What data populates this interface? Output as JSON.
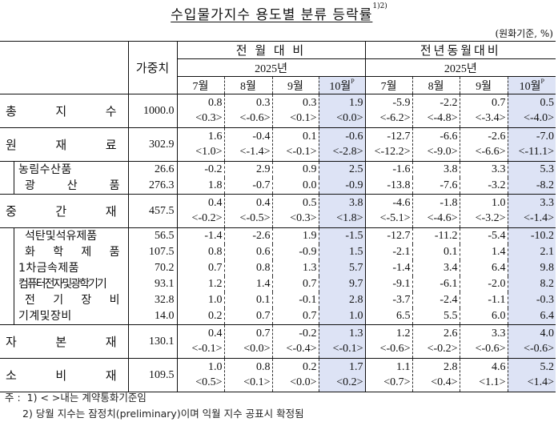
{
  "title": "수입물가지수 용도별 분류 등락률",
  "title_sup": "1)2)",
  "unit": "(원화기준, %)",
  "header": {
    "weight_label": "가중치",
    "group_mom": "전 월 대 비",
    "group_yoy": "전년동월대비",
    "year_mom": "2025년",
    "year_yoy": "2025년",
    "months": [
      "7월",
      "8월",
      "9월",
      "10월"
    ],
    "prelim_mark": "P"
  },
  "highlight_color": "#dde3f5",
  "rows": [
    {
      "label": "총 지 수",
      "weight": "1000.0",
      "type": "main",
      "mom": [
        "0.8",
        "0.3",
        "0.3",
        "1.9"
      ],
      "mom_contract": [
        "<0.3>",
        "<-0.6>",
        "<0.1>",
        "<0.0>"
      ],
      "yoy": [
        "-5.9",
        "-2.2",
        "0.7",
        "0.5"
      ],
      "yoy_contract": [
        "<-6.2>",
        "<-4.8>",
        "<-3.4>",
        "<-4.0>"
      ]
    },
    {
      "label": "원 재 료",
      "weight": "302.9",
      "type": "main",
      "mom": [
        "1.6",
        "-0.4",
        "0.1",
        "-0.6"
      ],
      "mom_contract": [
        "<1.0>",
        "<-1.4>",
        "<-0.1>",
        "<-2.8>"
      ],
      "yoy": [
        "-12.7",
        "-6.6",
        "-2.6",
        "-7.0"
      ],
      "yoy_contract": [
        "<-12.2>",
        "<-9.0>",
        "<-6.6>",
        "<-11.1>"
      ]
    },
    {
      "label": "농 림 수 산 품",
      "weight": "26.6",
      "type": "sub",
      "mom": [
        "-0.2",
        "2.9",
        "0.9",
        "2.5"
      ],
      "yoy": [
        "-1.6",
        "3.8",
        "3.3",
        "5.3"
      ]
    },
    {
      "label": "광 산 품",
      "weight": "276.3",
      "type": "sub",
      "mom": [
        "1.8",
        "-0.7",
        "0.0",
        "-0.9"
      ],
      "yoy": [
        "-13.8",
        "-7.6",
        "-3.2",
        "-8.2"
      ]
    },
    {
      "label": "중 간 재",
      "weight": "457.5",
      "type": "main",
      "mom": [
        "0.4",
        "0.4",
        "0.5",
        "3.8"
      ],
      "mom_contract": [
        "<-0.2>",
        "<-0.5>",
        "<0.3>",
        "<1.8>"
      ],
      "yoy": [
        "-4.6",
        "-1.8",
        "1.0",
        "3.3"
      ],
      "yoy_contract": [
        "<-5.1>",
        "<-4.6>",
        "<-3.2>",
        "<-1.4>"
      ]
    },
    {
      "label": "석탄및석유제품",
      "weight": "56.5",
      "type": "sub",
      "mom": [
        "-1.4",
        "-2.6",
        "1.9",
        "-1.5"
      ],
      "yoy": [
        "-12.7",
        "-11.2",
        "-5.4",
        "-10.2"
      ]
    },
    {
      "label": "화 학 제 품",
      "weight": "107.5",
      "type": "sub",
      "mom": [
        "0.8",
        "0.6",
        "-0.9",
        "1.5"
      ],
      "yoy": [
        "-2.1",
        "0.1",
        "1.4",
        "2.1"
      ]
    },
    {
      "label": "1 차 금 속 제 품",
      "weight": "70.2",
      "type": "sub",
      "mom": [
        "0.7",
        "0.8",
        "1.3",
        "5.7"
      ],
      "yoy": [
        "-1.4",
        "3.4",
        "6.4",
        "9.8"
      ]
    },
    {
      "label": "컴퓨터전자및광학기기",
      "weight": "93.1",
      "type": "sub",
      "mom": [
        "1.2",
        "1.4",
        "0.7",
        "9.7"
      ],
      "yoy": [
        "-9.1",
        "-6.1",
        "-2.0",
        "8.2"
      ]
    },
    {
      "label": "전 기 장 비",
      "weight": "32.8",
      "type": "sub",
      "mom": [
        "1.0",
        "0.1",
        "-0.1",
        "2.8"
      ],
      "yoy": [
        "-3.7",
        "-2.4",
        "-1.1",
        "-0.3"
      ]
    },
    {
      "label": "기 계 및 장 비",
      "weight": "14.0",
      "type": "sub",
      "mom": [
        "0.2",
        "0.7",
        "0.7",
        "1.0"
      ],
      "yoy": [
        "6.5",
        "5.5",
        "6.0",
        "6.4"
      ]
    },
    {
      "label": "자 본 재",
      "weight": "130.1",
      "type": "main",
      "mom": [
        "0.4",
        "0.7",
        "-0.2",
        "1.3"
      ],
      "mom_contract": [
        "<-0.1>",
        "<0.0>",
        "<-0.4>",
        "<-0.1>"
      ],
      "yoy": [
        "1.2",
        "2.6",
        "3.3",
        "4.0"
      ],
      "yoy_contract": [
        "<-0.6>",
        "<-0.2>",
        "<-0.6>",
        "<-0.6>"
      ]
    },
    {
      "label": "소 비 재",
      "weight": "109.5",
      "type": "main",
      "mom": [
        "1.0",
        "0.8",
        "0.2",
        "1.7"
      ],
      "mom_contract": [
        "<0.5>",
        "<0.1>",
        "<0.0>",
        "<0.2>"
      ],
      "yoy": [
        "1.1",
        "2.8",
        "4.6",
        "5.2"
      ],
      "yoy_contract": [
        "<0.7>",
        "<0.4>",
        "<1.1>",
        "<1.4>"
      ]
    }
  ],
  "notes": {
    "prefix": "주 :",
    "note1": "1) < >내는 계약통화기준임",
    "note2": "2) 당월 지수는 잠정치(preliminary)이며 익월 지수 공표시 확정됨"
  }
}
